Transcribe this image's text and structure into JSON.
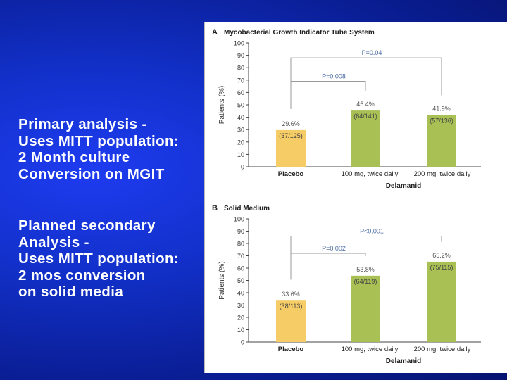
{
  "left_text": {
    "block1": [
      "Primary analysis -",
      "Uses MITT population:",
      "2 Month culture",
      "Conversion on MGIT"
    ],
    "block2": [
      "Planned secondary",
      "Analysis -",
      "Uses MITT population:",
      "2 mos conversion",
      "on solid media"
    ]
  },
  "colors": {
    "placebo_bar": "#f5cc66",
    "delamanid_bar": "#a8c054",
    "bracket": "#9a9a9a",
    "axis": "#444444",
    "pvalue_text": "#4a6aa0",
    "value_text": "#555555"
  },
  "chart_data": [
    {
      "type": "bar",
      "panel_letter": "A",
      "title": "Mycobacterial Growth Indicator Tube System",
      "ylabel": "Patients (%)",
      "xlabel": "Delamanid",
      "ylim": [
        0,
        100
      ],
      "yticks": [
        "0",
        "10",
        "20",
        "30",
        "40",
        "50",
        "60",
        "70",
        "80",
        "90",
        "100"
      ],
      "categories": [
        "Placebo",
        "100 mg, twice daily",
        "200 mg, twice daily"
      ],
      "values": [
        29.6,
        45.4,
        41.9
      ],
      "value_labels": [
        "29.6%",
        "45.4%",
        "41.9%"
      ],
      "counts": [
        "(37/125)",
        "(64/141)",
        "(57/136)"
      ],
      "comparisons": [
        {
          "label": "P=0.04",
          "from": 0,
          "to": 2,
          "level": 88
        },
        {
          "label": "P=0.008",
          "from": 0,
          "to": 1,
          "level": 69
        }
      ]
    },
    {
      "type": "bar",
      "panel_letter": "B",
      "title": "Solid Medium",
      "ylabel": "Patients (%)",
      "xlabel": "Delamanid",
      "ylim": [
        0,
        100
      ],
      "yticks": [
        "0",
        "10",
        "20",
        "30",
        "40",
        "50",
        "60",
        "70",
        "80",
        "90",
        "100"
      ],
      "categories": [
        "Placebo",
        "100 mg, twice daily",
        "200 mg, twice daily"
      ],
      "values": [
        33.6,
        53.8,
        65.2
      ],
      "value_labels": [
        "33.6%",
        "53.8%",
        "65.2%"
      ],
      "counts": [
        "(38/113)",
        "(64/119)",
        "(75/115)"
      ],
      "comparisons": [
        {
          "label": "P<0.001",
          "from": 0,
          "to": 2,
          "level": 86
        },
        {
          "label": "P=0.002",
          "from": 0,
          "to": 1,
          "level": 72
        }
      ]
    }
  ]
}
